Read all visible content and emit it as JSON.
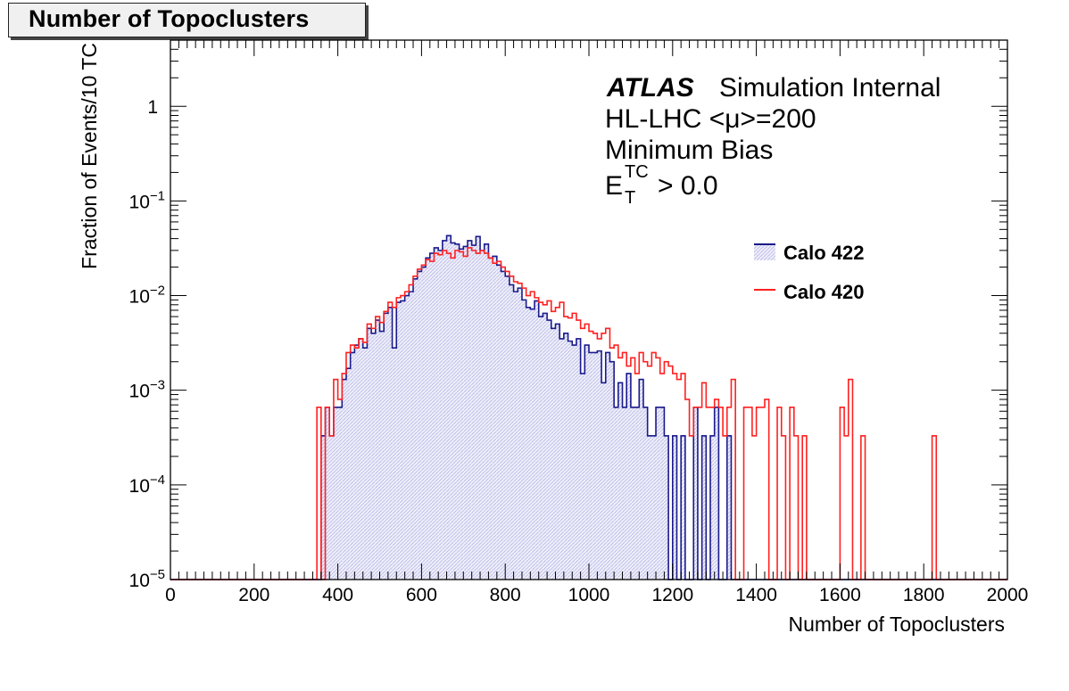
{
  "chart_data": {
    "type": "histogram",
    "title": "Number of Topoclusters",
    "xlabel": "Number of Topoclusters",
    "ylabel": "Fraction of Events/10 TC",
    "xlim": [
      0,
      2000
    ],
    "ylim": [
      1e-05,
      5
    ],
    "yscale": "log",
    "x_ticks": [
      "0",
      "200",
      "400",
      "600",
      "800",
      "1000",
      "1200",
      "1400",
      "1600",
      "1800",
      "2000"
    ],
    "y_ticks": [
      {
        "base": "10",
        "exp": "−5"
      },
      {
        "base": "10",
        "exp": "−4"
      },
      {
        "base": "10",
        "exp": "−3"
      },
      {
        "base": "10",
        "exp": "−2"
      },
      {
        "base": "10",
        "exp": "−1"
      },
      {
        "base": "1",
        "exp": ""
      }
    ],
    "bin_width": 10,
    "legend_position": "right",
    "annotations": {
      "atlas": "ATLAS",
      "atlas_suffix": "Simulation Internal",
      "line2": "HL-LHC <μ>=200",
      "line3": "Minimum Bias",
      "line4_base": "E",
      "line4_sup": "TC",
      "line4_sub": "T",
      "line4_rest": "> 0.0"
    },
    "series": [
      {
        "name": "Calo 422",
        "color": "#1a1a8c",
        "fill": "#dcdcf4",
        "bins": [
          [
            360,
            0.00033
          ],
          [
            370,
            0.00066
          ],
          [
            380,
            0.00033
          ],
          [
            390,
            0.00066
          ],
          [
            400,
            0.00066
          ],
          [
            410,
            0.0013
          ],
          [
            420,
            0.0017
          ],
          [
            430,
            0.0025
          ],
          [
            440,
            0.003
          ],
          [
            450,
            0.0035
          ],
          [
            460,
            0.0028
          ],
          [
            470,
            0.0045
          ],
          [
            480,
            0.004
          ],
          [
            490,
            0.0055
          ],
          [
            500,
            0.0042
          ],
          [
            510,
            0.0065
          ],
          [
            520,
            0.0075
          ],
          [
            530,
            0.0028
          ],
          [
            540,
            0.0085
          ],
          [
            550,
            0.0088
          ],
          [
            560,
            0.01
          ],
          [
            570,
            0.011
          ],
          [
            580,
            0.015
          ],
          [
            590,
            0.018
          ],
          [
            600,
            0.02
          ],
          [
            610,
            0.025
          ],
          [
            620,
            0.028
          ],
          [
            630,
            0.032
          ],
          [
            640,
            0.03
          ],
          [
            650,
            0.038
          ],
          [
            660,
            0.043
          ],
          [
            670,
            0.036
          ],
          [
            680,
            0.035
          ],
          [
            690,
            0.031
          ],
          [
            700,
            0.033
          ],
          [
            710,
            0.038
          ],
          [
            720,
            0.034
          ],
          [
            730,
            0.042
          ],
          [
            740,
            0.03
          ],
          [
            750,
            0.035
          ],
          [
            760,
            0.025
          ],
          [
            770,
            0.026
          ],
          [
            780,
            0.021
          ],
          [
            790,
            0.018
          ],
          [
            800,
            0.016
          ],
          [
            810,
            0.013
          ],
          [
            820,
            0.011
          ],
          [
            830,
            0.012
          ],
          [
            840,
            0.009
          ],
          [
            850,
            0.0075
          ],
          [
            860,
            0.0072
          ],
          [
            870,
            0.0088
          ],
          [
            880,
            0.006
          ],
          [
            890,
            0.0065
          ],
          [
            900,
            0.0055
          ],
          [
            910,
            0.0045
          ],
          [
            920,
            0.005
          ],
          [
            930,
            0.0035
          ],
          [
            940,
            0.004
          ],
          [
            950,
            0.0033
          ],
          [
            960,
            0.003
          ],
          [
            970,
            0.0035
          ],
          [
            980,
            0.0015
          ],
          [
            990,
            0.003
          ],
          [
            1000,
            0.0025
          ],
          [
            1010,
            0.0025
          ],
          [
            1020,
            0.0026
          ],
          [
            1030,
            0.0012
          ],
          [
            1040,
            0.0025
          ],
          [
            1050,
            0.002
          ],
          [
            1060,
            0.00066
          ],
          [
            1070,
            0.0012
          ],
          [
            1080,
            0.00066
          ],
          [
            1090,
            0.0015
          ],
          [
            1100,
            0.00066
          ],
          [
            1110,
            0.00066
          ],
          [
            1120,
            0.0013
          ],
          [
            1130,
            0.00066
          ],
          [
            1140,
            0.00033
          ],
          [
            1150,
            0.00033
          ],
          [
            1160,
            0.00066
          ],
          [
            1170,
            0.00066
          ],
          [
            1180,
            0.00033
          ],
          [
            1190,
            0.0
          ],
          [
            1200,
            0.00033
          ],
          [
            1210,
            0.0
          ],
          [
            1220,
            0.00033
          ],
          [
            1230,
            0.0
          ],
          [
            1240,
            0.0
          ],
          [
            1250,
            0.00066
          ],
          [
            1260,
            0.0
          ],
          [
            1270,
            0.00033
          ],
          [
            1280,
            0.0
          ],
          [
            1290,
            0.00033
          ],
          [
            1300,
            0.00066
          ],
          [
            1310,
            0.0
          ],
          [
            1320,
            0.0
          ],
          [
            1330,
            0.00033
          ]
        ]
      },
      {
        "name": "Calo 420",
        "color": "#ff2020",
        "fill": "none",
        "bins": [
          [
            350,
            0.00066
          ],
          [
            360,
            0.0
          ],
          [
            370,
            0.00066
          ],
          [
            380,
            0.00033
          ],
          [
            390,
            0.0013
          ],
          [
            400,
            0.0008
          ],
          [
            410,
            0.0015
          ],
          [
            420,
            0.0025
          ],
          [
            430,
            0.003
          ],
          [
            440,
            0.0028
          ],
          [
            450,
            0.0035
          ],
          [
            460,
            0.0032
          ],
          [
            470,
            0.005
          ],
          [
            480,
            0.0045
          ],
          [
            490,
            0.006
          ],
          [
            500,
            0.0052
          ],
          [
            510,
            0.0068
          ],
          [
            520,
            0.0085
          ],
          [
            530,
            0.0075
          ],
          [
            540,
            0.0095
          ],
          [
            550,
            0.01
          ],
          [
            560,
            0.011
          ],
          [
            570,
            0.013
          ],
          [
            580,
            0.016
          ],
          [
            590,
            0.019
          ],
          [
            600,
            0.021
          ],
          [
            610,
            0.024
          ],
          [
            620,
            0.023
          ],
          [
            630,
            0.028
          ],
          [
            640,
            0.027
          ],
          [
            650,
            0.03
          ],
          [
            660,
            0.028
          ],
          [
            670,
            0.025
          ],
          [
            680,
            0.03
          ],
          [
            690,
            0.029
          ],
          [
            700,
            0.026
          ],
          [
            710,
            0.032
          ],
          [
            720,
            0.03
          ],
          [
            730,
            0.028
          ],
          [
            740,
            0.03
          ],
          [
            750,
            0.028
          ],
          [
            760,
            0.025
          ],
          [
            770,
            0.022
          ],
          [
            780,
            0.023
          ],
          [
            790,
            0.02
          ],
          [
            800,
            0.018
          ],
          [
            810,
            0.016
          ],
          [
            820,
            0.014
          ],
          [
            830,
            0.0135
          ],
          [
            840,
            0.012
          ],
          [
            850,
            0.01
          ],
          [
            860,
            0.011
          ],
          [
            870,
            0.0095
          ],
          [
            880,
            0.0085
          ],
          [
            890,
            0.008
          ],
          [
            900,
            0.0088
          ],
          [
            910,
            0.0068
          ],
          [
            920,
            0.0075
          ],
          [
            930,
            0.0085
          ],
          [
            940,
            0.006
          ],
          [
            950,
            0.0058
          ],
          [
            960,
            0.0065
          ],
          [
            970,
            0.0055
          ],
          [
            980,
            0.0045
          ],
          [
            990,
            0.005
          ],
          [
            1000,
            0.0042
          ],
          [
            1010,
            0.004
          ],
          [
            1020,
            0.0035
          ],
          [
            1030,
            0.004
          ],
          [
            1040,
            0.0045
          ],
          [
            1050,
            0.0028
          ],
          [
            1060,
            0.003
          ],
          [
            1070,
            0.0022
          ],
          [
            1080,
            0.0025
          ],
          [
            1090,
            0.0018
          ],
          [
            1100,
            0.0022
          ],
          [
            1110,
            0.0015
          ],
          [
            1120,
            0.0025
          ],
          [
            1130,
            0.002
          ],
          [
            1140,
            0.0018
          ],
          [
            1150,
            0.0025
          ],
          [
            1160,
            0.0022
          ],
          [
            1170,
            0.0015
          ],
          [
            1180,
            0.002
          ],
          [
            1190,
            0.0018
          ],
          [
            1200,
            0.0015
          ],
          [
            1210,
            0.0013
          ],
          [
            1220,
            0.0015
          ],
          [
            1230,
            0.0008
          ],
          [
            1240,
            0.00033
          ],
          [
            1250,
            0.00066
          ],
          [
            1260,
            0.00066
          ],
          [
            1270,
            0.0012
          ],
          [
            1280,
            0.00066
          ],
          [
            1290,
            0.00066
          ],
          [
            1300,
            0.0008
          ],
          [
            1310,
            0.00066
          ],
          [
            1320,
            0.00033
          ],
          [
            1330,
            0.00066
          ],
          [
            1340,
            0.0013
          ],
          [
            1350,
            0.0
          ],
          [
            1360,
            0.0
          ],
          [
            1370,
            0.00066
          ],
          [
            1380,
            0.00066
          ],
          [
            1390,
            0.00033
          ],
          [
            1400,
            0.00066
          ],
          [
            1410,
            0.00066
          ],
          [
            1420,
            0.0008
          ],
          [
            1430,
            0.0
          ],
          [
            1440,
            0.0
          ],
          [
            1450,
            0.00066
          ],
          [
            1460,
            0.00033
          ],
          [
            1470,
            0.0
          ],
          [
            1480,
            0.00066
          ],
          [
            1490,
            0.00033
          ],
          [
            1500,
            0.0
          ],
          [
            1510,
            0.00033
          ],
          [
            1520,
            0.0
          ],
          [
            1530,
            0.0
          ],
          [
            1540,
            0.0
          ],
          [
            1550,
            0.0
          ],
          [
            1560,
            0.0
          ],
          [
            1570,
            0.0
          ],
          [
            1580,
            0.0
          ],
          [
            1590,
            0.0
          ],
          [
            1600,
            0.00066
          ],
          [
            1610,
            0.00033
          ],
          [
            1620,
            0.0013
          ],
          [
            1630,
            0.0
          ],
          [
            1640,
            0.0
          ],
          [
            1650,
            0.00033
          ],
          [
            1660,
            0.0
          ],
          [
            1670,
            0.0
          ],
          [
            1680,
            0.0
          ],
          [
            1690,
            0.0
          ],
          [
            1700,
            0.0
          ],
          [
            1710,
            0.0
          ],
          [
            1720,
            0.0
          ],
          [
            1730,
            0.0
          ],
          [
            1740,
            0.0
          ],
          [
            1750,
            0.0
          ],
          [
            1760,
            0.0
          ],
          [
            1770,
            0.0
          ],
          [
            1780,
            0.0
          ],
          [
            1790,
            0.0
          ],
          [
            1800,
            0.0
          ],
          [
            1810,
            0.0
          ],
          [
            1820,
            0.00033
          ]
        ]
      }
    ]
  }
}
